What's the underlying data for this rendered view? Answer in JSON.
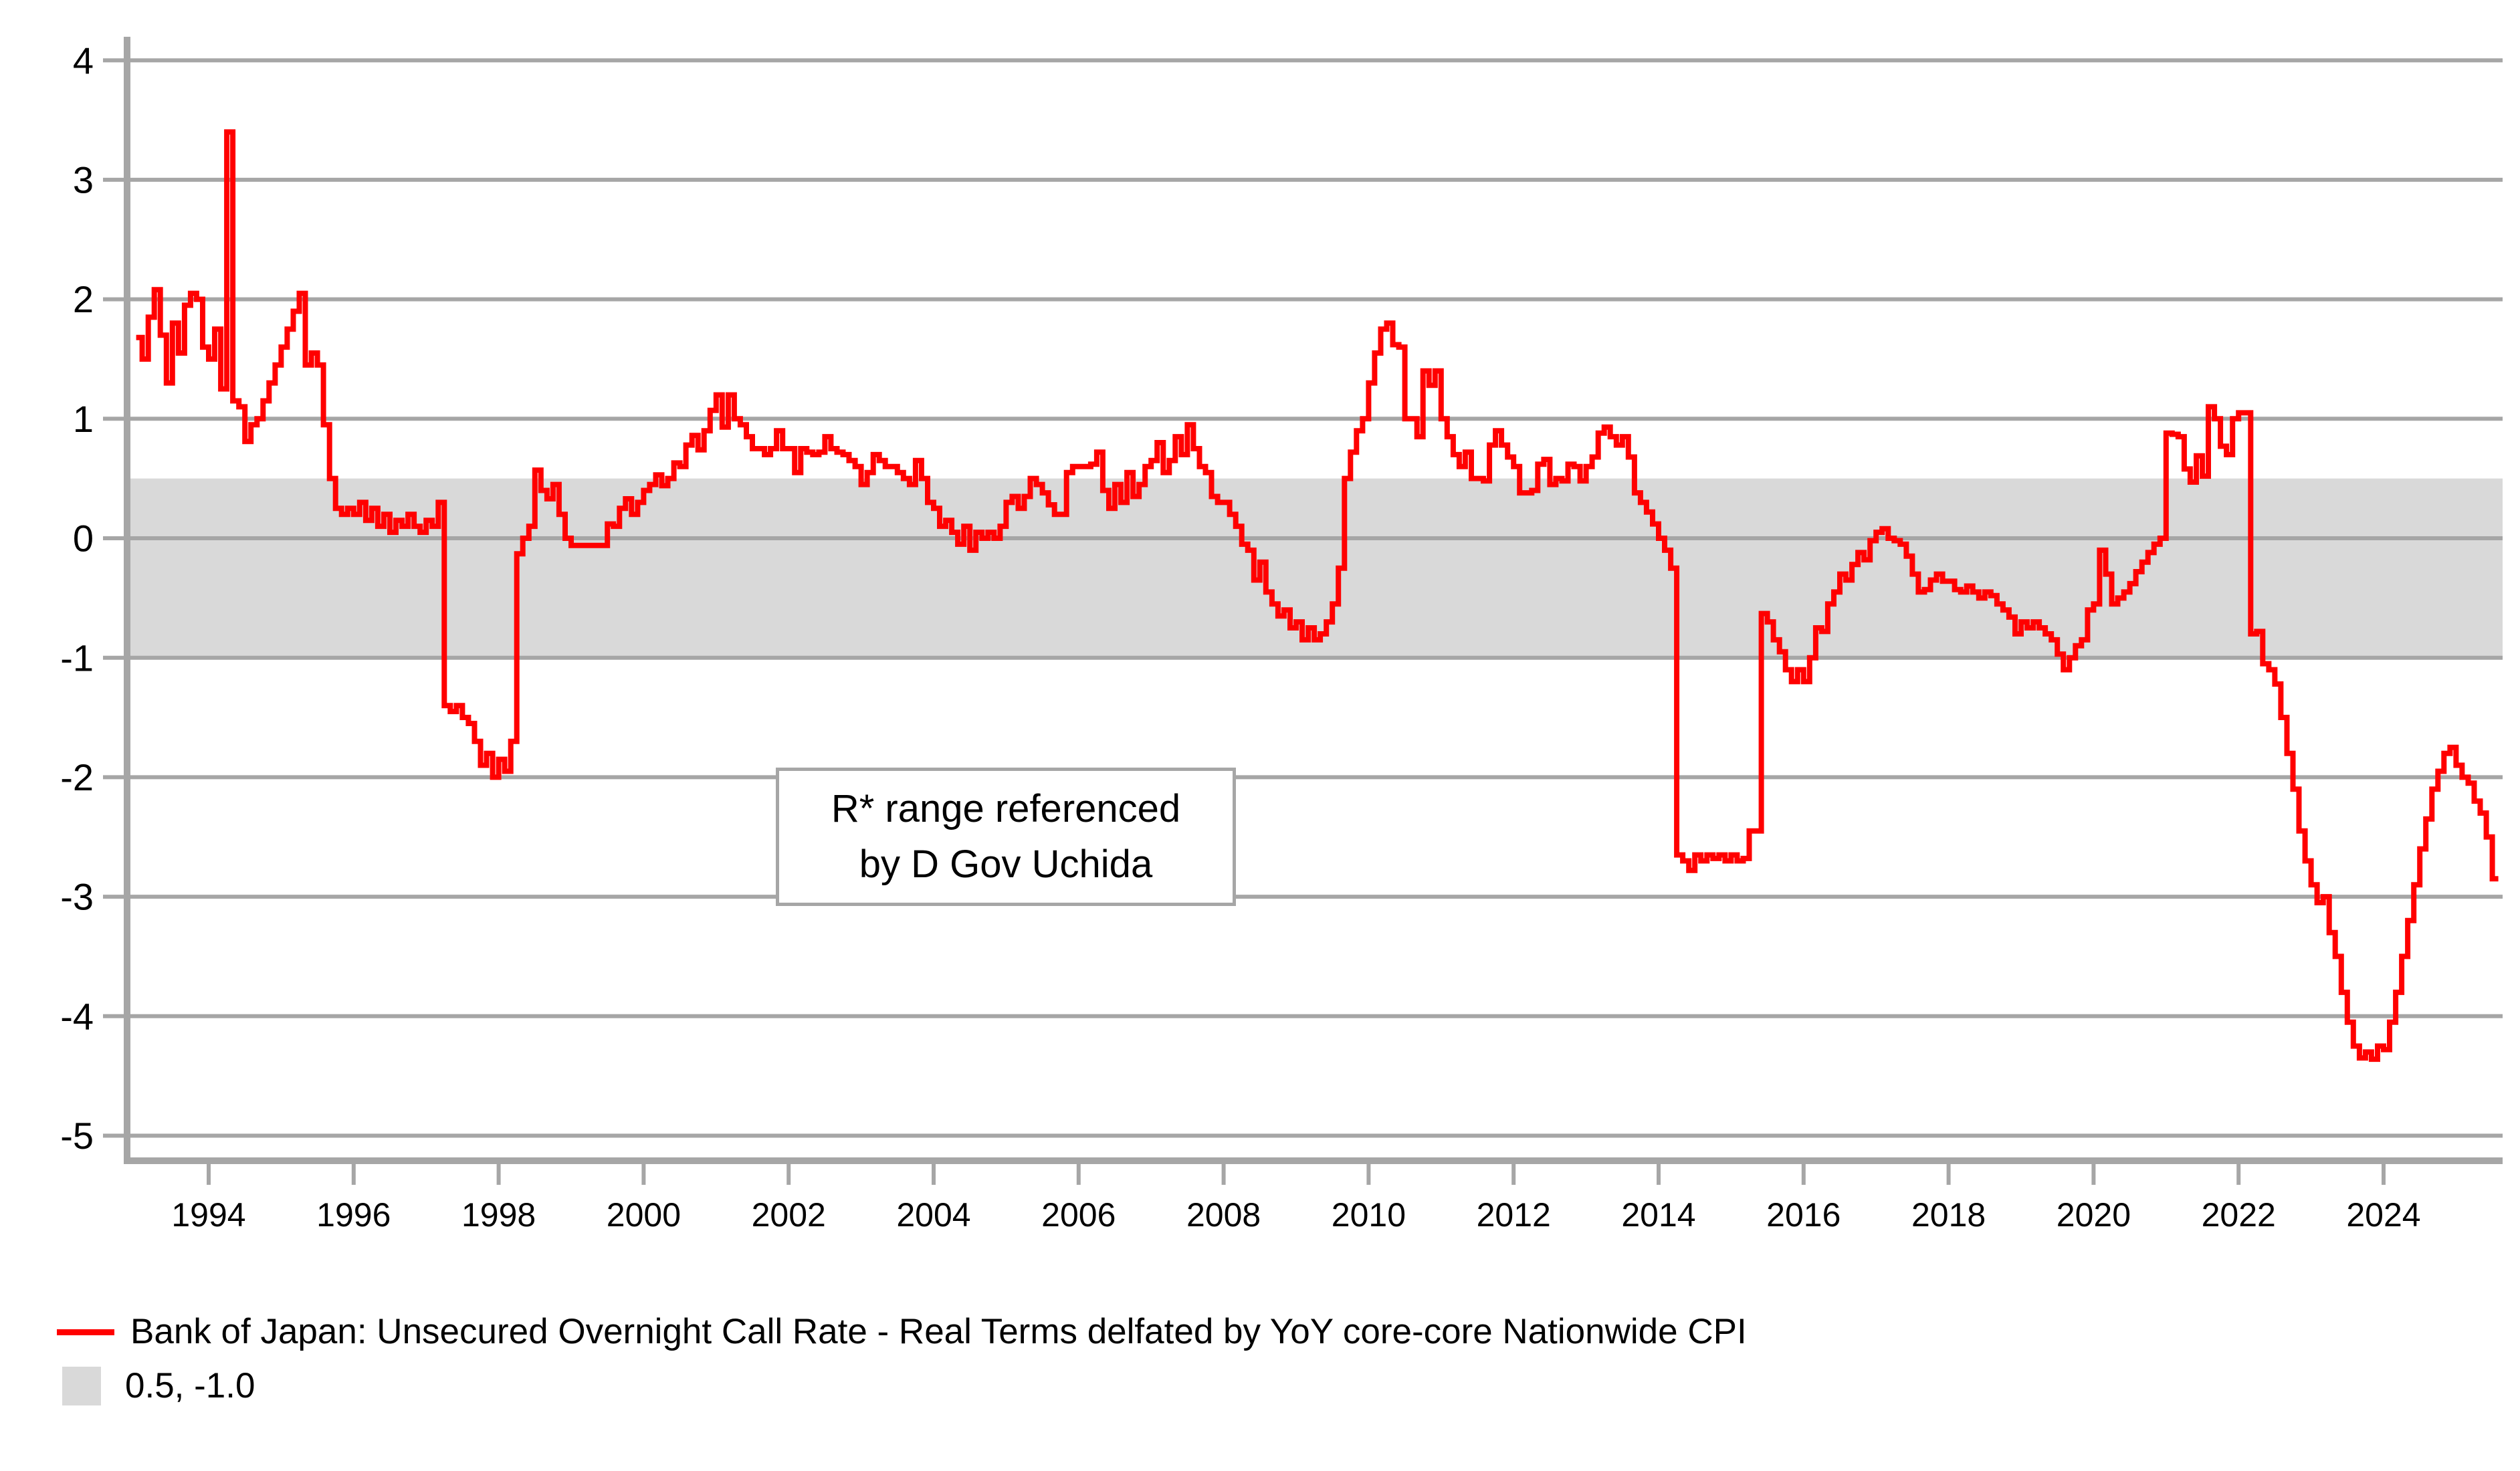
{
  "chart_data": {
    "type": "line",
    "title": "",
    "xlabel": "",
    "ylabel": "",
    "x_start_year": 1993.0,
    "x_step_years": 0.08333,
    "x_end_year": 2025.5,
    "xlim": [
      1992.9,
      2025.75
    ],
    "ylim": [
      -5.4,
      4.3
    ],
    "grid": "horizontal",
    "y_ticks": [
      4,
      3,
      2,
      1,
      0,
      -1,
      -2,
      -3,
      -4,
      -5
    ],
    "y_tick_labels": [
      "4",
      "3",
      "2",
      "1",
      "0",
      "-1",
      "-2",
      "-3",
      "-4",
      "-5"
    ],
    "x_ticks": [
      1994,
      1996,
      1998,
      2000,
      2002,
      2004,
      2006,
      2008,
      2010,
      2012,
      2014,
      2016,
      2018,
      2020,
      2022,
      2024
    ],
    "x_tick_labels": [
      "1994",
      "1996",
      "1998",
      "2000",
      "2002",
      "2004",
      "2006",
      "2008",
      "2010",
      "2012",
      "2014",
      "2016",
      "2018",
      "2020",
      "2022",
      "2024"
    ],
    "reference_band": {
      "top": 0.5,
      "bottom": -1.0,
      "color": "#d9d9d9",
      "label": "0.5, -1.0"
    },
    "series": [
      {
        "name": "Bank of Japan: Unsecured Overnight Call Rate - Real Terms delfated by YoY core-core Nationwide CPI",
        "color": "#ff0000",
        "style": "step-after",
        "frequency": "monthly",
        "values": [
          1.68,
          1.5,
          1.85,
          2.08,
          1.7,
          1.3,
          1.8,
          1.55,
          1.95,
          2.05,
          2.0,
          1.6,
          1.5,
          1.75,
          1.25,
          3.4,
          1.15,
          1.1,
          0.81,
          0.95,
          1.0,
          1.15,
          1.3,
          1.45,
          1.6,
          1.75,
          1.9,
          2.05,
          1.45,
          1.55,
          1.45,
          0.95,
          0.5,
          0.25,
          0.2,
          0.25,
          0.2,
          0.3,
          0.15,
          0.25,
          0.1,
          0.2,
          0.05,
          0.15,
          0.1,
          0.2,
          0.1,
          0.05,
          0.15,
          0.1,
          0.3,
          -1.4,
          -1.45,
          -1.4,
          -1.5,
          -1.55,
          -1.7,
          -1.9,
          -1.8,
          -2.0,
          -1.85,
          -1.95,
          -1.7,
          -0.13,
          0.0,
          0.1,
          0.57,
          0.4,
          0.33,
          0.45,
          0.2,
          0.0,
          -0.06,
          -0.06,
          -0.06,
          -0.06,
          -0.06,
          -0.06,
          0.12,
          0.1,
          0.25,
          0.33,
          0.2,
          0.3,
          0.4,
          0.45,
          0.53,
          0.44,
          0.5,
          0.63,
          0.6,
          0.78,
          0.86,
          0.74,
          0.9,
          1.07,
          1.2,
          0.93,
          1.2,
          1.0,
          0.95,
          0.85,
          0.75,
          0.75,
          0.7,
          0.75,
          0.9,
          0.75,
          0.75,
          0.55,
          0.75,
          0.72,
          0.7,
          0.72,
          0.85,
          0.75,
          0.72,
          0.7,
          0.65,
          0.6,
          0.45,
          0.55,
          0.7,
          0.65,
          0.6,
          0.6,
          0.55,
          0.5,
          0.45,
          0.65,
          0.5,
          0.3,
          0.25,
          0.1,
          0.15,
          0.05,
          -0.05,
          0.1,
          -0.1,
          0.05,
          0.0,
          0.05,
          0.0,
          0.1,
          0.3,
          0.35,
          0.25,
          0.35,
          0.5,
          0.45,
          0.38,
          0.28,
          0.2,
          0.2,
          0.55,
          0.6,
          0.6,
          0.6,
          0.62,
          0.72,
          0.4,
          0.25,
          0.45,
          0.3,
          0.55,
          0.35,
          0.45,
          0.6,
          0.65,
          0.8,
          0.55,
          0.65,
          0.85,
          0.7,
          0.95,
          0.75,
          0.6,
          0.55,
          0.35,
          0.3,
          0.3,
          0.2,
          0.1,
          -0.05,
          -0.1,
          -0.35,
          -0.2,
          -0.45,
          -0.55,
          -0.65,
          -0.6,
          -0.75,
          -0.7,
          -0.85,
          -0.75,
          -0.85,
          -0.8,
          -0.7,
          -0.55,
          -0.25,
          0.5,
          0.72,
          0.9,
          1.0,
          1.3,
          1.55,
          1.75,
          1.8,
          1.62,
          1.6,
          1.0,
          1.0,
          0.85,
          1.4,
          1.28,
          1.4,
          1.0,
          0.85,
          0.7,
          0.6,
          0.72,
          0.5,
          0.5,
          0.48,
          0.78,
          0.9,
          0.78,
          0.68,
          0.6,
          0.38,
          0.38,
          0.4,
          0.62,
          0.66,
          0.45,
          0.5,
          0.48,
          0.62,
          0.6,
          0.48,
          0.6,
          0.68,
          0.88,
          0.93,
          0.85,
          0.78,
          0.85,
          0.68,
          0.38,
          0.3,
          0.22,
          0.12,
          0.0,
          -0.1,
          -0.25,
          -2.65,
          -2.7,
          -2.78,
          -2.65,
          -2.7,
          -2.65,
          -2.68,
          -2.65,
          -2.7,
          -2.65,
          -2.7,
          -2.68,
          -2.45,
          -2.45,
          -0.63,
          -0.7,
          -0.85,
          -0.95,
          -1.1,
          -1.2,
          -1.1,
          -1.2,
          -1.0,
          -0.75,
          -0.78,
          -0.55,
          -0.45,
          -0.3,
          -0.35,
          -0.22,
          -0.12,
          -0.18,
          -0.02,
          0.05,
          0.08,
          0.0,
          -0.02,
          -0.05,
          -0.15,
          -0.3,
          -0.45,
          -0.43,
          -0.35,
          -0.3,
          -0.36,
          -0.36,
          -0.43,
          -0.45,
          -0.4,
          -0.45,
          -0.5,
          -0.45,
          -0.48,
          -0.55,
          -0.6,
          -0.66,
          -0.8,
          -0.7,
          -0.75,
          -0.7,
          -0.75,
          -0.8,
          -0.85,
          -0.97,
          -1.1,
          -1.0,
          -0.9,
          -0.85,
          -0.6,
          -0.55,
          -0.1,
          -0.3,
          -0.55,
          -0.5,
          -0.45,
          -0.38,
          -0.28,
          -0.2,
          -0.12,
          -0.05,
          0.0,
          0.88,
          0.87,
          0.85,
          0.58,
          0.47,
          0.69,
          0.52,
          1.1,
          1.0,
          0.77,
          0.7,
          1.0,
          1.05,
          1.05,
          -0.8,
          -0.78,
          -1.05,
          -1.1,
          -1.22,
          -1.5,
          -1.8,
          -2.1,
          -2.45,
          -2.7,
          -2.9,
          -3.05,
          -3.0,
          -3.3,
          -3.5,
          -3.8,
          -4.05,
          -4.25,
          -4.35,
          -4.3,
          -4.36,
          -4.25,
          -4.28,
          -4.05,
          -3.8,
          -3.5,
          -3.2,
          -2.9,
          -2.6,
          -2.35,
          -2.1,
          -1.95,
          -1.8,
          -1.75,
          -1.9,
          -2.0,
          -2.05,
          -2.2,
          -2.3,
          -2.5,
          -2.85
        ]
      }
    ],
    "legend_position": "bottom-left",
    "colors": {
      "line": "#ff0000",
      "band": "#d9d9d9",
      "grid": "#a6a6a6",
      "axis": "#a6a6a6",
      "text": "#000000",
      "background": "#ffffff"
    }
  },
  "annotation": {
    "line1": "R* range referenced",
    "line2": "by D Gov Uchida"
  },
  "legend": {
    "series_label": "Bank of Japan: Unsecured Overnight Call Rate - Real Terms delfated by YoY core-core Nationwide CPI",
    "band_label": "0.5, -1.0"
  }
}
